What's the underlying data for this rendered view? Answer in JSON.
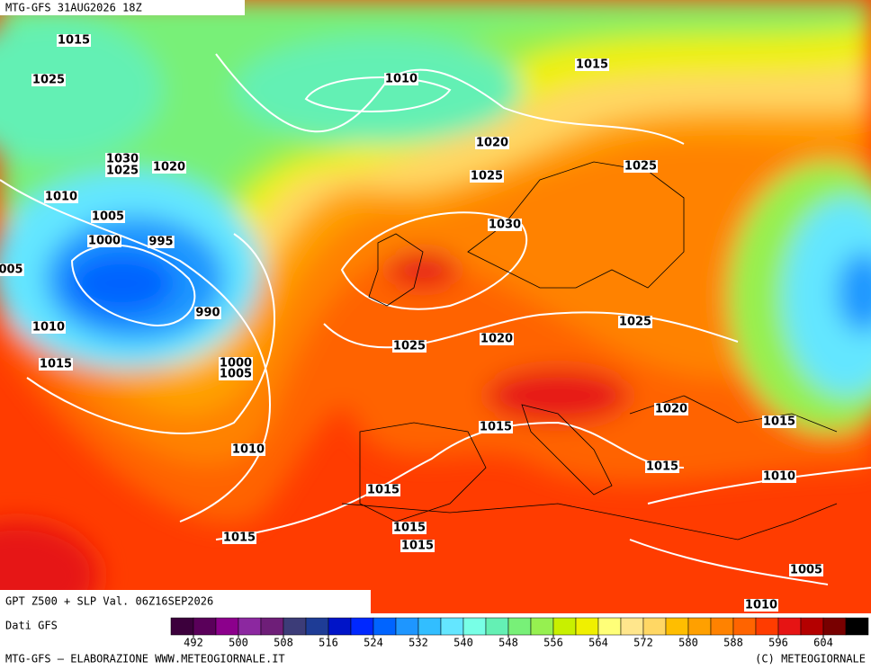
{
  "header": {
    "title": "MTG-GFS 31AUG2026 18Z"
  },
  "map": {
    "isobar_labels": [
      "1015",
      "1025",
      "1010",
      "1015",
      "1020",
      "1030",
      "1025",
      "1020",
      "1025",
      "1025",
      "1010",
      "1005",
      "1030",
      "1000",
      "995",
      "005",
      "990",
      "1025",
      "1010",
      "1020",
      "1025",
      "1015",
      "1000",
      "1005",
      "1020",
      "1015",
      "1015",
      "1010",
      "1015",
      "1010",
      "1015",
      "1015",
      "1015",
      "1015",
      "1005",
      "1010"
    ]
  },
  "legend": {
    "title": "GPT Z500 + SLP Val. 06Z16SEP2026",
    "source": "Dati GFS",
    "colors": [
      "#3c003c",
      "#5a005a",
      "#8c008c",
      "#8c28a0",
      "#6e1e78",
      "#3c3c78",
      "#1e3c96",
      "#0014c8",
      "#0028ff",
      "#0064ff",
      "#1e96ff",
      "#32beff",
      "#64e6ff",
      "#78ffe6",
      "#64f0b4",
      "#78f078",
      "#96f050",
      "#c8f000",
      "#f0f000",
      "#ffff78",
      "#ffe68c",
      "#ffd764",
      "#ffbe00",
      "#ffa000",
      "#ff8200",
      "#ff6400",
      "#ff3c00",
      "#e61414",
      "#b40000",
      "#780000",
      "#000000"
    ],
    "ticks": [
      492,
      500,
      508,
      516,
      524,
      532,
      540,
      548,
      556,
      564,
      572,
      580,
      588,
      596,
      604
    ]
  },
  "footer": {
    "left": "MTG-GFS — ELABORAZIONE WWW.METEOGIORNALE.IT",
    "right": "(C) METEOGIORNALE"
  }
}
